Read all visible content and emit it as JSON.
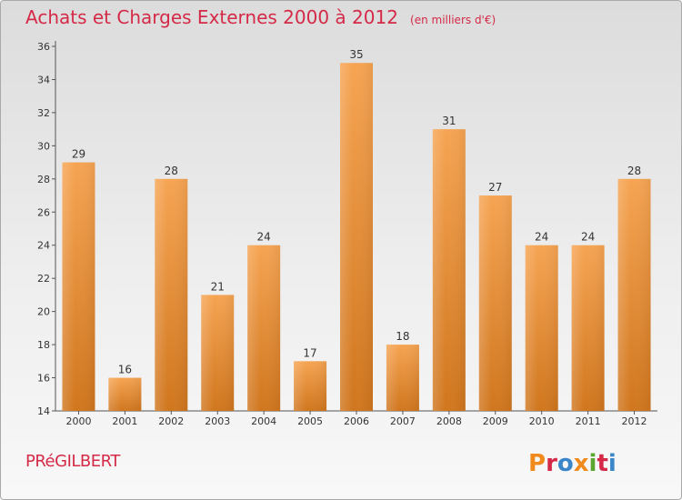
{
  "header": {
    "title": "Achats et Charges Externes 2000 à 2012",
    "subtitle": "(en milliers d'€)"
  },
  "footer": {
    "commune": "PRéGILBERT",
    "logo_text": "Proxiti"
  },
  "colors": {
    "title": "#d42a48",
    "bar_light": "#f6a452",
    "bar_dark": "#d0761e",
    "logo_letters": [
      "#f08a1c",
      "#d42a48",
      "#3a86c8",
      "#f08a1c",
      "#5aa630",
      "#d42a48",
      "#3a86c8"
    ]
  },
  "chart_data": {
    "type": "bar",
    "categories": [
      "2000",
      "2001",
      "2002",
      "2003",
      "2004",
      "2005",
      "2006",
      "2007",
      "2008",
      "2009",
      "2010",
      "2011",
      "2012"
    ],
    "values": [
      29,
      16,
      28,
      21,
      24,
      17,
      35,
      18,
      31,
      27,
      24,
      24,
      28
    ],
    "ylim": [
      14,
      36
    ],
    "yticks": [
      14,
      16,
      18,
      20,
      22,
      24,
      26,
      28,
      30,
      32,
      34,
      36
    ],
    "grid": false,
    "data_labels": true
  }
}
